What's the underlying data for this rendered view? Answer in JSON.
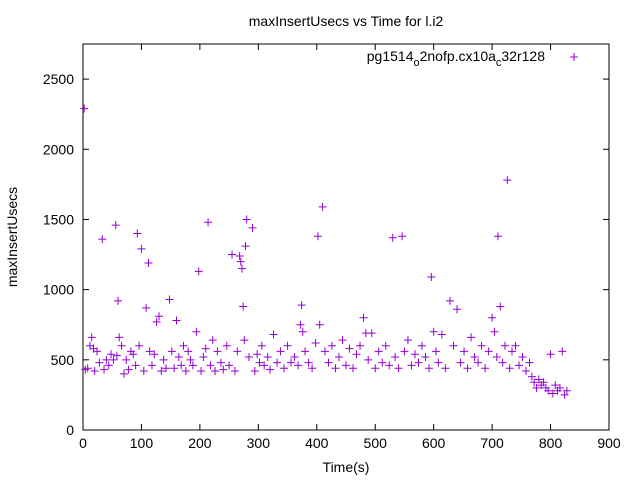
{
  "chart_data": {
    "type": "scatter",
    "title": "maxInsertUsecs vs Time for l.i2",
    "xlabel": "Time(s)",
    "ylabel": "maxInsertUsecs",
    "xlim": [
      0,
      900
    ],
    "ylim": [
      0,
      2750
    ],
    "xticks": [
      0,
      100,
      200,
      300,
      400,
      500,
      600,
      700,
      800,
      900
    ],
    "yticks": [
      0,
      500,
      1000,
      1500,
      2000,
      2500
    ],
    "grid": false,
    "legend": "top-right",
    "series": [
      {
        "name": "pg1514_o2nofp.cx10a_c32r128",
        "name_parts": [
          "pg1514",
          "o",
          "2nofp.cx10a",
          "c",
          "32r128"
        ],
        "color": "#9400d3",
        "marker": "plus",
        "points": [
          [
            2,
            2290
          ],
          [
            4,
            430
          ],
          [
            8,
            440
          ],
          [
            12,
            600
          ],
          [
            15,
            660
          ],
          [
            18,
            580
          ],
          [
            20,
            420
          ],
          [
            24,
            560
          ],
          [
            28,
            480
          ],
          [
            33,
            1360
          ],
          [
            36,
            430
          ],
          [
            40,
            500
          ],
          [
            44,
            460
          ],
          [
            48,
            540
          ],
          [
            52,
            500
          ],
          [
            56,
            1460
          ],
          [
            58,
            530
          ],
          [
            60,
            920
          ],
          [
            62,
            660
          ],
          [
            66,
            600
          ],
          [
            70,
            400
          ],
          [
            74,
            500
          ],
          [
            78,
            430
          ],
          [
            82,
            560
          ],
          [
            86,
            540
          ],
          [
            90,
            460
          ],
          [
            93,
            1400
          ],
          [
            96,
            600
          ],
          [
            100,
            1290
          ],
          [
            104,
            420
          ],
          [
            108,
            870
          ],
          [
            112,
            1190
          ],
          [
            114,
            560
          ],
          [
            118,
            460
          ],
          [
            122,
            540
          ],
          [
            126,
            770
          ],
          [
            130,
            810
          ],
          [
            134,
            420
          ],
          [
            138,
            500
          ],
          [
            142,
            440
          ],
          [
            148,
            930
          ],
          [
            152,
            560
          ],
          [
            156,
            440
          ],
          [
            160,
            780
          ],
          [
            164,
            520
          ],
          [
            168,
            460
          ],
          [
            172,
            600
          ],
          [
            176,
            420
          ],
          [
            180,
            560
          ],
          [
            184,
            500
          ],
          [
            188,
            460
          ],
          [
            194,
            700
          ],
          [
            198,
            1130
          ],
          [
            202,
            420
          ],
          [
            206,
            520
          ],
          [
            210,
            580
          ],
          [
            214,
            1480
          ],
          [
            218,
            460
          ],
          [
            222,
            640
          ],
          [
            226,
            420
          ],
          [
            230,
            560
          ],
          [
            236,
            480
          ],
          [
            240,
            430
          ],
          [
            246,
            600
          ],
          [
            250,
            460
          ],
          [
            255,
            1250
          ],
          [
            260,
            420
          ],
          [
            264,
            560
          ],
          [
            268,
            1240
          ],
          [
            270,
            1200
          ],
          [
            272,
            1150
          ],
          [
            274,
            880
          ],
          [
            276,
            640
          ],
          [
            278,
            1310
          ],
          [
            280,
            1500
          ],
          [
            284,
            520
          ],
          [
            290,
            1440
          ],
          [
            294,
            420
          ],
          [
            298,
            540
          ],
          [
            302,
            480
          ],
          [
            306,
            600
          ],
          [
            310,
            460
          ],
          [
            316,
            520
          ],
          [
            320,
            430
          ],
          [
            326,
            680
          ],
          [
            332,
            480
          ],
          [
            338,
            560
          ],
          [
            344,
            440
          ],
          [
            350,
            600
          ],
          [
            356,
            480
          ],
          [
            362,
            520
          ],
          [
            368,
            460
          ],
          [
            372,
            750
          ],
          [
            374,
            890
          ],
          [
            376,
            700
          ],
          [
            380,
            560
          ],
          [
            386,
            480
          ],
          [
            392,
            440
          ],
          [
            398,
            620
          ],
          [
            402,
            1380
          ],
          [
            405,
            750
          ],
          [
            410,
            1590
          ],
          [
            414,
            560
          ],
          [
            420,
            480
          ],
          [
            426,
            600
          ],
          [
            432,
            440
          ],
          [
            438,
            520
          ],
          [
            444,
            640
          ],
          [
            450,
            460
          ],
          [
            456,
            580
          ],
          [
            462,
            440
          ],
          [
            468,
            540
          ],
          [
            474,
            600
          ],
          [
            480,
            800
          ],
          [
            484,
            690
          ],
          [
            488,
            500
          ],
          [
            494,
            690
          ],
          [
            500,
            440
          ],
          [
            506,
            560
          ],
          [
            512,
            480
          ],
          [
            518,
            600
          ],
          [
            524,
            460
          ],
          [
            530,
            1370
          ],
          [
            534,
            520
          ],
          [
            540,
            440
          ],
          [
            546,
            1380
          ],
          [
            550,
            560
          ],
          [
            556,
            640
          ],
          [
            562,
            460
          ],
          [
            568,
            540
          ],
          [
            574,
            480
          ],
          [
            580,
            600
          ],
          [
            586,
            520
          ],
          [
            592,
            440
          ],
          [
            596,
            1090
          ],
          [
            600,
            700
          ],
          [
            604,
            560
          ],
          [
            608,
            480
          ],
          [
            614,
            680
          ],
          [
            620,
            440
          ],
          [
            628,
            920
          ],
          [
            634,
            600
          ],
          [
            640,
            860
          ],
          [
            646,
            480
          ],
          [
            652,
            560
          ],
          [
            658,
            440
          ],
          [
            664,
            660
          ],
          [
            670,
            520
          ],
          [
            676,
            480
          ],
          [
            682,
            600
          ],
          [
            688,
            440
          ],
          [
            694,
            560
          ],
          [
            700,
            800
          ],
          [
            704,
            700
          ],
          [
            708,
            520
          ],
          [
            710,
            1380
          ],
          [
            714,
            880
          ],
          [
            718,
            480
          ],
          [
            722,
            600
          ],
          [
            726,
            1780
          ],
          [
            730,
            440
          ],
          [
            734,
            560
          ],
          [
            740,
            600
          ],
          [
            746,
            460
          ],
          [
            752,
            520
          ],
          [
            758,
            420
          ],
          [
            764,
            480
          ],
          [
            768,
            380
          ],
          [
            772,
            340
          ],
          [
            776,
            300
          ],
          [
            780,
            360
          ],
          [
            784,
            320
          ],
          [
            788,
            340
          ],
          [
            792,
            300
          ],
          [
            796,
            280
          ],
          [
            800,
            540
          ],
          [
            804,
            260
          ],
          [
            808,
            320
          ],
          [
            812,
            280
          ],
          [
            816,
            300
          ],
          [
            820,
            560
          ],
          [
            824,
            250
          ],
          [
            828,
            280
          ]
        ]
      }
    ]
  }
}
